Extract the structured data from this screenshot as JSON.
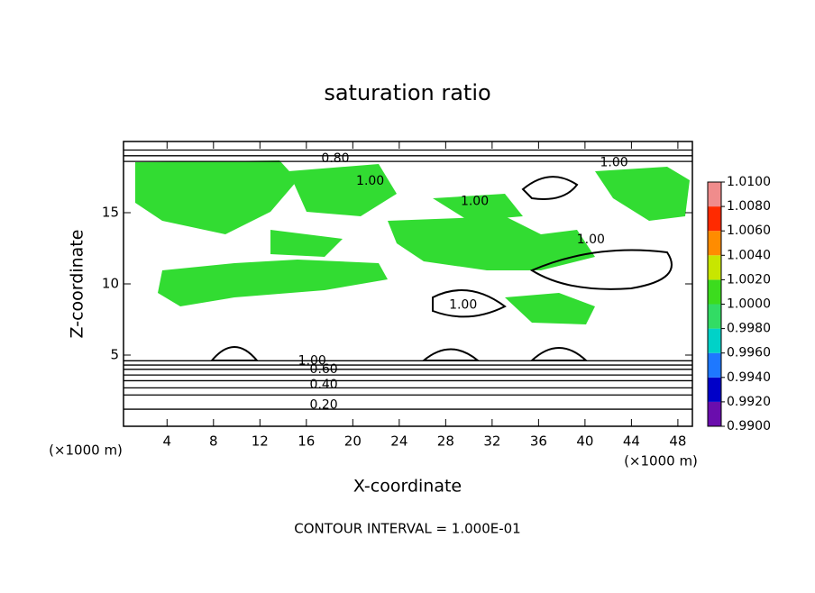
{
  "chart_data": {
    "type": "contour",
    "title": "saturation ratio",
    "x_label": "X-coordinate",
    "y_label": "Z-coordinate",
    "x_unit_left": "(×1000 m)",
    "x_unit_right": "(×1000 m)",
    "footnote": "CONTOUR INTERVAL = 1.000E-01",
    "xlim": [
      0.25,
      49.25
    ],
    "xticks": [
      4,
      8,
      12,
      16,
      20,
      24,
      28,
      32,
      36,
      40,
      44,
      48
    ],
    "ylim": [
      0,
      20
    ],
    "yticks": [
      5,
      10,
      15
    ],
    "colorbar": {
      "ticks": [
        {
          "value": 0.99,
          "label": "0.9900"
        },
        {
          "value": 0.992,
          "label": "0.9920"
        },
        {
          "value": 0.994,
          "label": "0.9940"
        },
        {
          "value": 0.996,
          "label": "0.9960"
        },
        {
          "value": 0.998,
          "label": "0.9980"
        },
        {
          "value": 1.0,
          "label": "1.0000"
        },
        {
          "value": 1.002,
          "label": "1.0020"
        },
        {
          "value": 1.004,
          "label": "1.0040"
        },
        {
          "value": 1.006,
          "label": "1.0060"
        },
        {
          "value": 1.008,
          "label": "1.0080"
        },
        {
          "value": 1.01,
          "label": "1.0100"
        }
      ],
      "colors": [
        "#6a0dad",
        "#0000c8",
        "#1e78ff",
        "#00d2c8",
        "#32dc64",
        "#3cdc1e",
        "#c8e600",
        "#ff8c00",
        "#ff2a00",
        "#f08c8c"
      ]
    },
    "annotations": [
      {
        "text": "0.80",
        "x": 18.5,
        "y": 18.8
      },
      {
        "text": "1.00",
        "x": 21.5,
        "y": 17.2
      },
      {
        "text": "1.00",
        "x": 42.5,
        "y": 18.5
      },
      {
        "text": "1.00",
        "x": 30.5,
        "y": 15.8
      },
      {
        "text": "1.00",
        "x": 40.5,
        "y": 13.1
      },
      {
        "text": "1.00",
        "x": 29.5,
        "y": 8.5
      },
      {
        "text": "1.00",
        "x": 16.5,
        "y": 4.6
      },
      {
        "text": "0.60",
        "x": 17.5,
        "y": 4.0
      },
      {
        "text": "0.40",
        "x": 17.5,
        "y": 2.9
      },
      {
        "text": "0.20",
        "x": 17.5,
        "y": 1.5
      }
    ]
  }
}
